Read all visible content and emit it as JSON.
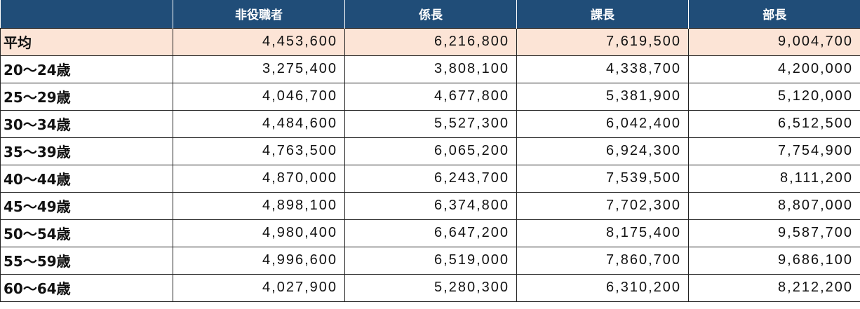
{
  "table": {
    "header": [
      "非役職者",
      "係長",
      "課長",
      "部長"
    ],
    "rows": [
      [
        "平均",
        "4,453,600",
        "6,216,800",
        "7,619,500",
        "9,004,700"
      ],
      [
        "20～24歳",
        "3,275,400",
        "3,808,100",
        "4,338,700",
        "4,200,000"
      ],
      [
        "25～29歳",
        "4,046,700",
        "4,677,800",
        "5,381,900",
        "5,120,000"
      ],
      [
        "30～34歳",
        "4,484,600",
        "5,527,300",
        "6,042,400",
        "6,512,500"
      ],
      [
        "35～39歳",
        "4,763,500",
        "6,065,200",
        "6,924,300",
        "7,754,900"
      ],
      [
        "40～44歳",
        "4,870,000",
        "6,243,700",
        "7,539,500",
        "8,111,200"
      ],
      [
        "45～49歳",
        "4,898,100",
        "6,374,800",
        "7,702,300",
        "8,807,000"
      ],
      [
        "50～54歳",
        "4,980,400",
        "6,647,200",
        "8,175,400",
        "9,587,700"
      ],
      [
        "55～59歳",
        "4,996,600",
        "6,519,000",
        "7,860,700",
        "9,686,100"
      ],
      [
        "60～64歳",
        "4,027,900",
        "5,280,300",
        "6,310,200",
        "8,212,200"
      ]
    ]
  }
}
